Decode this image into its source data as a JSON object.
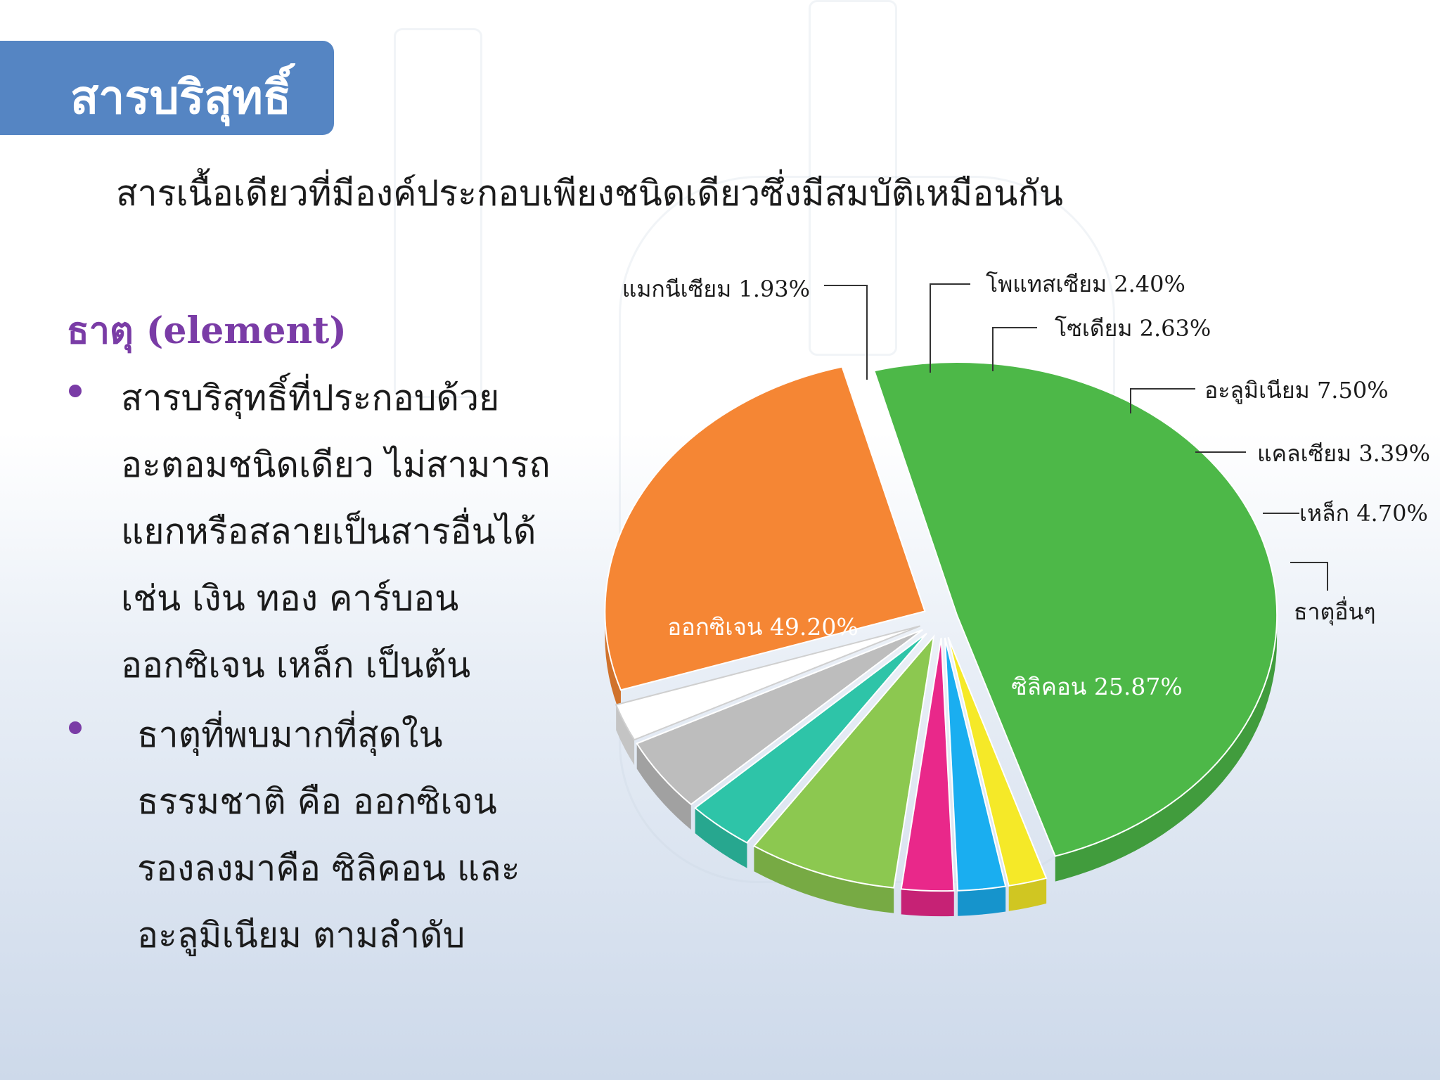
{
  "title": "สารบริสุทธิ์",
  "definition": "สารเนื้อเดียวที่มีองค์ประกอบเพียงชนิดเดียวซึ่งมีสมบัติเหมือนกัน",
  "element_heading": "ธาตุ (element)",
  "bullets": [
    {
      "lines": [
        "สารบริสุทธิ์ที่ประกอบด้วย",
        "อะตอมชนิดเดียว ไม่สามารถ",
        "แยกหรือสลายเป็นสารอื่นได้",
        "เช่น เงิน ทอง คาร์บอน",
        "ออกซิเจน เหล็ก เป็นต้น"
      ]
    },
    {
      "lines": [
        "ธาตุที่พบมากที่สุดใน",
        "ธรรมชาติ คือ ออกซิเจน",
        "รองลงมาคือ ซิลิคอน และ",
        "อะลูมิเนียม ตามลำดับ"
      ]
    }
  ],
  "chart_data": {
    "type": "pie",
    "title": "",
    "series": [
      {
        "label": "ออกซิเจน 49.20%",
        "value": 49.2,
        "color": "#4db848"
      },
      {
        "label": "แมกนีเซียม 1.93%",
        "value": 1.93,
        "color": "#f5e928"
      },
      {
        "label": "โพแทสเซียม 2.40%",
        "value": 2.4,
        "color": "#1aaef0"
      },
      {
        "label": "โซเดียม 2.63%",
        "value": 2.63,
        "color": "#e9288a"
      },
      {
        "label": "อะลูมิเนียม 7.50%",
        "value": 7.5,
        "color": "#8cc850"
      },
      {
        "label": "แคลเซียม 3.39%",
        "value": 3.39,
        "color": "#2ec4a8"
      },
      {
        "label": "เหล็ก 4.70%",
        "value": 4.7,
        "color": "#bdbdbd"
      },
      {
        "label": "ธาตุอื่นๆ",
        "value": 2.38,
        "color": "#ffffff"
      },
      {
        "label": "ซิลิคอน 25.87%",
        "value": 25.87,
        "color": "#f58634"
      }
    ]
  }
}
